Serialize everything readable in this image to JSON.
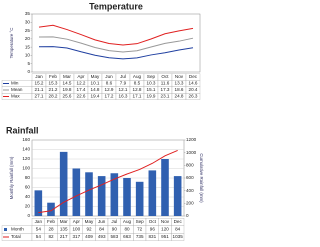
{
  "chart_data": [
    {
      "type": "line",
      "title": "Temperature",
      "y_label": "Temperature °C",
      "categories": [
        "Jan",
        "Feb",
        "Mar",
        "Apr",
        "May",
        "Jun",
        "Jul",
        "Aug",
        "Sep",
        "Oct",
        "Nov",
        "Dec"
      ],
      "ylim": [
        0,
        35
      ],
      "yticks": [
        0,
        5,
        10,
        15,
        20,
        25,
        30,
        35
      ],
      "grid": false,
      "series": [
        {
          "name": "Min",
          "color": "#1f3fa0",
          "values": [
            15.2,
            15.3,
            14.5,
            12.2,
            10.1,
            8.6,
            7.9,
            8.5,
            10.3,
            11.6,
            13.3,
            14.6
          ]
        },
        {
          "name": "Mean",
          "color": "#999999",
          "values": [
            21.1,
            21.2,
            19.8,
            17.4,
            14.8,
            12.9,
            12.1,
            12.8,
            15.1,
            17.3,
            18.6,
            20.4
          ]
        },
        {
          "name": "Max",
          "color": "#e02020",
          "values": [
            27.1,
            28.2,
            25.6,
            22.6,
            19.4,
            17.2,
            16.3,
            17.1,
            19.9,
            23.1,
            24.8,
            26.3
          ]
        }
      ]
    },
    {
      "type": "bar",
      "title": "Rainfall",
      "y_label": "Monthly Rainfall (mm)",
      "y2_label": "Cumulative Rainfall (mm)",
      "categories": [
        "Jan",
        "Feb",
        "Mar",
        "Apr",
        "May",
        "Jun",
        "Jul",
        "Aug",
        "Sep",
        "Oct",
        "Nov",
        "Dec"
      ],
      "ylim": [
        0,
        160
      ],
      "yticks": [
        0,
        20,
        40,
        60,
        80,
        100,
        120,
        140,
        160
      ],
      "y2lim": [
        0,
        1200
      ],
      "y2ticks": [
        0,
        200,
        400,
        600,
        800,
        1000,
        1200
      ],
      "grid": true,
      "series": [
        {
          "name": "Month",
          "color": "#3060b0",
          "values": [
            54,
            28,
            135,
            100,
            92,
            84,
            90,
            80,
            72,
            96,
            120,
            84
          ]
        },
        {
          "name": "Total",
          "type": "line",
          "axis": "y2",
          "color": "#e02020",
          "values": [
            54,
            82,
            217,
            317,
            409,
            493,
            583,
            663,
            735,
            831,
            951,
            1035
          ]
        }
      ]
    }
  ]
}
